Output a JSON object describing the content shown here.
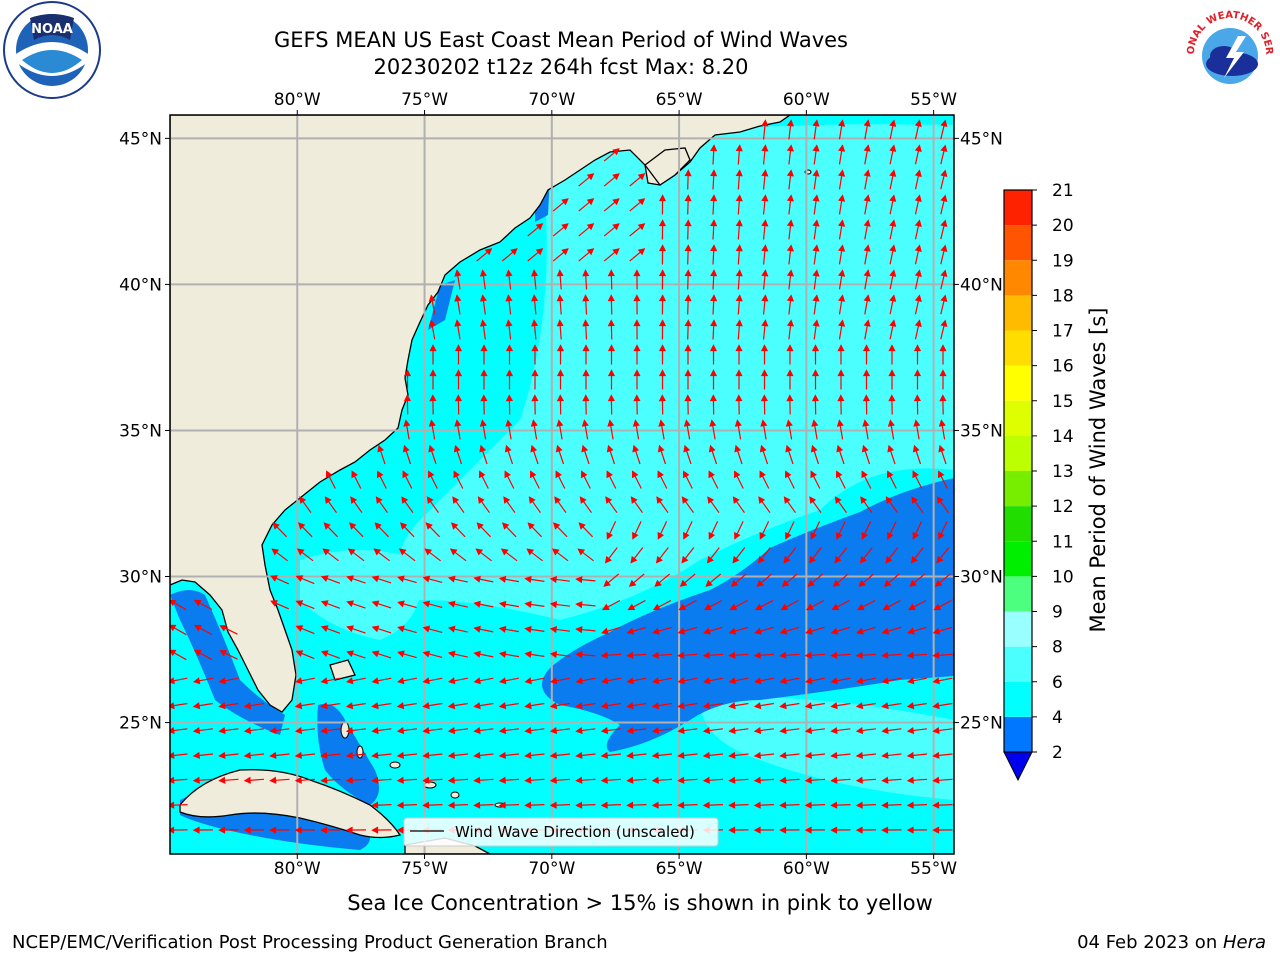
{
  "title": {
    "line1": "GEFS MEAN US East Coast Mean Period of Wind Waves",
    "line2": "20230202 t12z 264h fcst   Max: 8.20"
  },
  "map": {
    "lon_range": [
      -85,
      -54.2
    ],
    "lat_range": [
      20.5,
      45.8
    ],
    "lon_ticks": [
      "80°W",
      "75°W",
      "70°W",
      "65°W",
      "60°W",
      "55°W"
    ],
    "lat_ticks": [
      "45°N",
      "40°N",
      "35°N",
      "30°N",
      "25°N"
    ],
    "grid": true,
    "land_color": "#efecdc",
    "arrow_color": "#ff0000",
    "legend_label": "Wind Wave Direction (unscaled)"
  },
  "colorbar": {
    "label": "Mean Period of Wind Waves [s]",
    "levels": [
      "2",
      "4",
      "6",
      "8",
      "9",
      "10",
      "11",
      "12",
      "13",
      "14",
      "15",
      "16",
      "17",
      "18",
      "19",
      "20",
      "21"
    ],
    "colors": [
      "#0077ff",
      "#00ffff",
      "#4cffff",
      "#99ffff",
      "#4cff7f",
      "#00ee00",
      "#22dd00",
      "#77ee00",
      "#bbff00",
      "#ddff00",
      "#ffff00",
      "#ffdd00",
      "#ffbb00",
      "#ff8800",
      "#ff5500",
      "#ff2200",
      "#ff0000"
    ],
    "extend_color": "#0000ee"
  },
  "ice_note": "Sea Ice Concentration > 15% is shown in pink to yellow",
  "footer": {
    "left": "NCEP/EMC/Verification Post Processing Product Generation Branch",
    "date": "04 Feb 2023 on ",
    "machine": "Hera"
  },
  "logos": {
    "left": "NOAA",
    "right": "NATIONAL WEATHER SERVICE"
  }
}
